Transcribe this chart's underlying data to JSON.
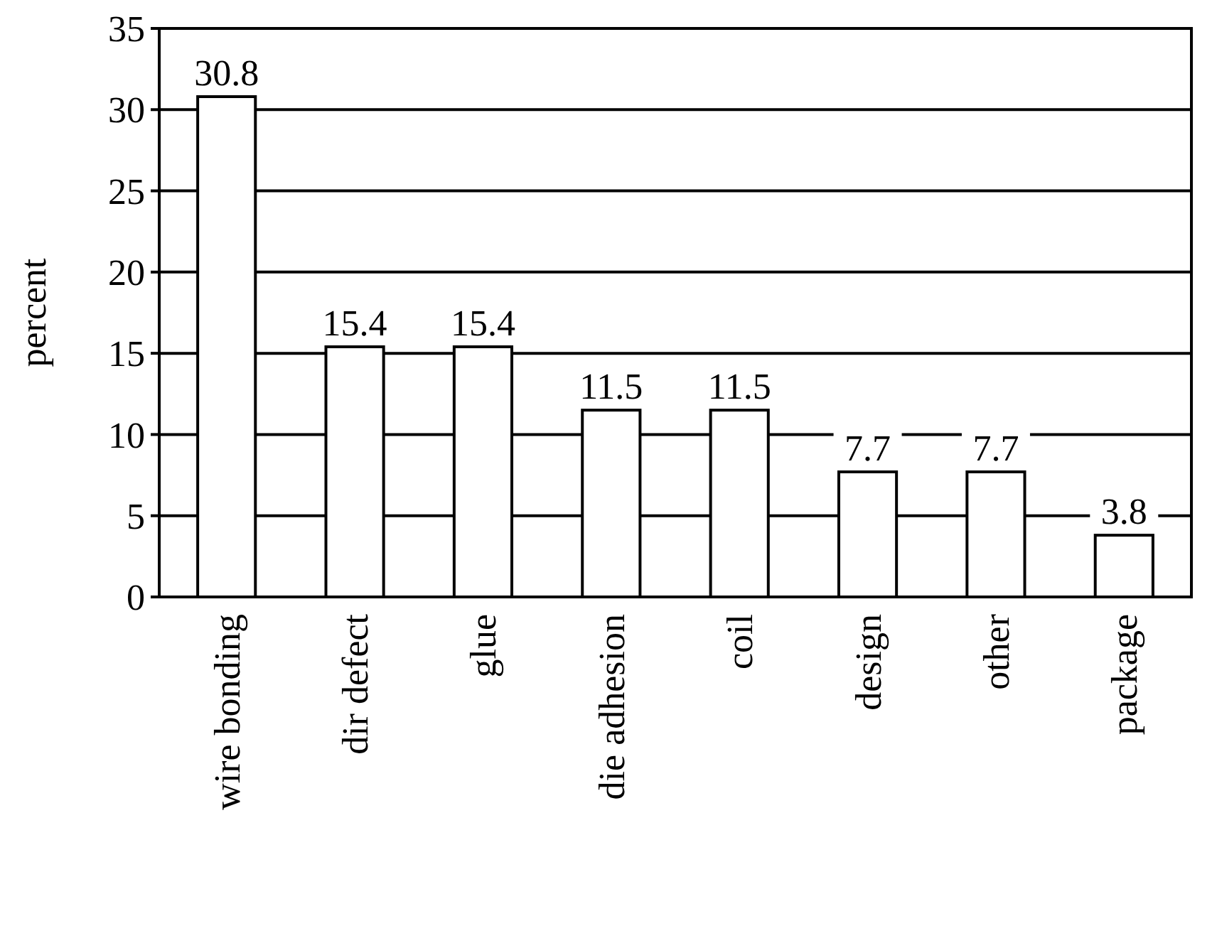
{
  "chart_data": {
    "type": "bar",
    "ylabel": "percent",
    "categories": [
      "wire bonding",
      "dir defect",
      "glue",
      "die adhesion",
      "coil",
      "design",
      "other",
      "package"
    ],
    "values": [
      30.8,
      15.4,
      15.4,
      11.5,
      11.5,
      7.7,
      7.7,
      3.8
    ],
    "color": "#ffffff",
    "ylim": [
      0,
      35
    ],
    "yticks": [
      0,
      5,
      10,
      15,
      20,
      25,
      30,
      35
    ],
    "grid": "y",
    "data_labels": true
  }
}
